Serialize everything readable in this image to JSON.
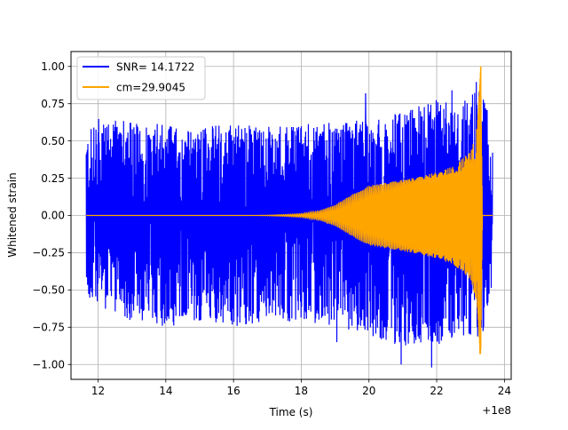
{
  "chart_data": {
    "type": "line",
    "title": "",
    "xlabel": "Time (s)",
    "ylabel": "Whitened strain",
    "x_offset_label": "+1e8",
    "xlim": [
      11.2,
      24.2
    ],
    "ylim": [
      -1.1,
      1.1
    ],
    "xticks": [
      12,
      14,
      16,
      18,
      20,
      22,
      24
    ],
    "xtick_labels": [
      "12",
      "14",
      "16",
      "18",
      "20",
      "22",
      "24"
    ],
    "yticks": [
      -1.0,
      -0.75,
      -0.5,
      -0.25,
      0.0,
      0.25,
      0.5,
      0.75,
      1.0
    ],
    "ytick_labels": [
      "−1.00",
      "−0.75",
      "−0.50",
      "−0.25",
      "0.00",
      "0.25",
      "0.50",
      "0.75",
      "1.00"
    ],
    "grid": true,
    "legend_position": "top-left",
    "series": [
      {
        "name": "SNR= 14.1722",
        "color": "#0000ff",
        "x_range": [
          11.65,
          23.65
        ],
        "description_level": {
          "typical_abs": 0.35,
          "peak_abs": 1.0
        },
        "envelope": {
          "x": [
            11.65,
            12.0,
            13.0,
            14.0,
            15.0,
            16.0,
            17.0,
            18.0,
            19.0,
            20.0,
            21.0,
            22.0,
            22.5,
            23.0,
            23.3,
            23.65
          ],
          "upper": [
            0.55,
            0.65,
            0.63,
            0.61,
            0.6,
            0.62,
            0.6,
            0.61,
            0.63,
            0.65,
            0.7,
            0.78,
            0.76,
            0.8,
            1.0,
            0.5
          ],
          "lower": [
            -0.57,
            -0.62,
            -0.71,
            -0.75,
            -0.72,
            -0.76,
            -0.7,
            -0.72,
            -0.75,
            -0.8,
            -0.9,
            -0.87,
            -0.82,
            -0.85,
            -0.92,
            -0.45
          ]
        },
        "notable_spikes": [
          {
            "x": 19.05,
            "y": -0.85
          },
          {
            "x": 20.95,
            "y": -1.0
          },
          {
            "x": 21.85,
            "y": -1.02
          },
          {
            "x": 19.9,
            "y": 0.82
          },
          {
            "x": 22.45,
            "y": 0.84
          }
        ]
      },
      {
        "name": "cm=29.9045",
        "color": "#ffa500",
        "x_range": [
          11.65,
          23.65
        ],
        "envelope": {
          "x": [
            11.65,
            16.5,
            17.0,
            17.5,
            18.0,
            18.5,
            19.0,
            19.5,
            20.0,
            20.5,
            21.0,
            21.5,
            22.0,
            22.5,
            23.0,
            23.2,
            23.3,
            23.35,
            23.65
          ],
          "amplitude": [
            0.0,
            0.0,
            0.002,
            0.006,
            0.012,
            0.03,
            0.07,
            0.14,
            0.2,
            0.22,
            0.24,
            0.26,
            0.29,
            0.33,
            0.43,
            0.6,
            1.0,
            0.0,
            0.0
          ]
        },
        "peak": {
          "x": 23.3,
          "y": 1.0
        },
        "trough": {
          "x": 23.28,
          "y": -0.93
        }
      }
    ]
  }
}
